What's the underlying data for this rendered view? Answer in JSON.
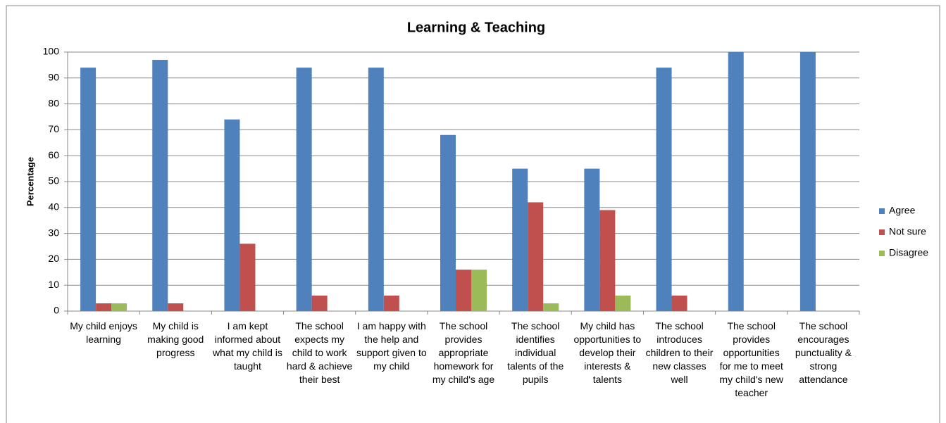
{
  "chart_data": {
    "type": "bar",
    "title": "Learning & Teaching",
    "y_label": "Percentage",
    "categories": [
      "My child enjoys learning",
      "My child is making good progress",
      "I am kept informed about what my child is taught",
      "The school expects my child to work hard & achieve their best",
      "I am happy with the help and support given to my child",
      "The school provides appropriate homework for my child's age",
      "The school identifies individual talents of the pupils",
      "My child has opportunities to develop their interests & talents",
      "The school introduces children to their new classes well",
      "The school provides opportunities for me to meet my child's new teacher",
      "The school encourages punctuality & strong attendance"
    ],
    "series": [
      {
        "name": "Agree",
        "color": "#4f81bd",
        "values": [
          94,
          97,
          74,
          94,
          94,
          68,
          55,
          55,
          94,
          100,
          100
        ]
      },
      {
        "name": "Not sure",
        "color": "#c0504d",
        "values": [
          3,
          3,
          26,
          6,
          6,
          16,
          42,
          39,
          6,
          0,
          0
        ]
      },
      {
        "name": "Disagree",
        "color": "#9bbb59",
        "values": [
          3,
          0,
          0,
          0,
          0,
          16,
          3,
          6,
          0,
          0,
          0
        ]
      }
    ],
    "ylim": [
      0,
      100
    ],
    "yticks": [
      0,
      10,
      20,
      30,
      40,
      50,
      60,
      70,
      80,
      90,
      100
    ],
    "grid": true,
    "legend": "right"
  }
}
